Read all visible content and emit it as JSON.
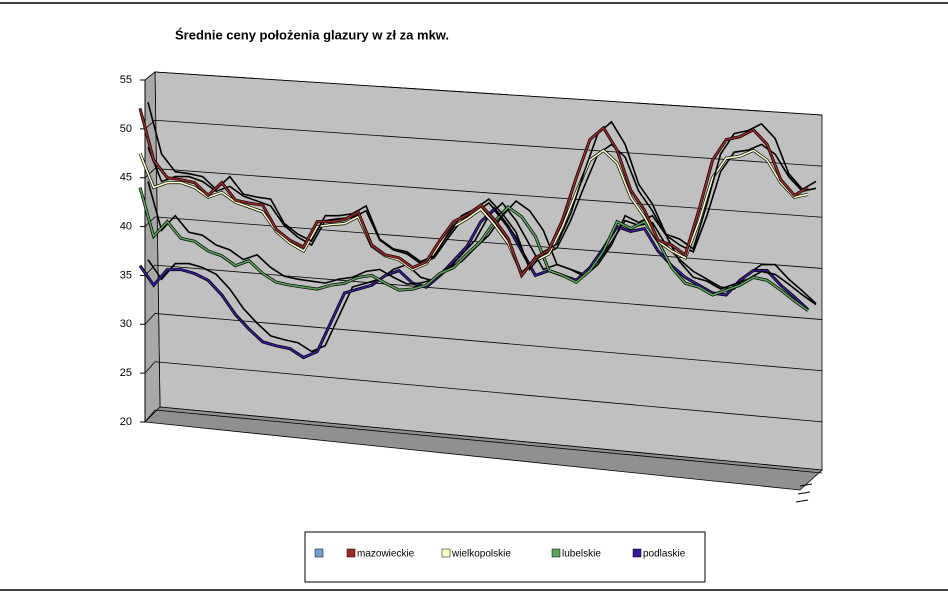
{
  "chart_data": {
    "type": "line3d",
    "title": "Średnie ceny położenia glazury w zł za mkw.",
    "ylim": [
      20,
      55
    ],
    "yticks": [
      20,
      25,
      30,
      35,
      40,
      45,
      50,
      55
    ],
    "grid": true,
    "series": [
      {
        "name": "mazowieckie",
        "color": "#a02828",
        "values": [
          52.1,
          46.8,
          45.0,
          44.8,
          44.5,
          43.2,
          44.5,
          42.7,
          42.4,
          42.2,
          39.7,
          38.6,
          37.9,
          40.5,
          40.5,
          40.7,
          41.5,
          38.1,
          37.1,
          36.8,
          35.8,
          36.4,
          38.6,
          40.5,
          41.2,
          42.2,
          40.7,
          38.8,
          35.0,
          36.8,
          37.6,
          40.7,
          45.0,
          48.9,
          50.1,
          47.8,
          43.7,
          41.7,
          38.6,
          38.1,
          37.1,
          41.7,
          46.8,
          48.9,
          49.2,
          49.9,
          48.4,
          44.8,
          43.2,
          44.0
        ]
      },
      {
        "name": "wielkopolskie",
        "color": "#ffffc8",
        "values": [
          47.5,
          44.0,
          44.5,
          44.5,
          44.0,
          43.0,
          43.5,
          42.5,
          42.0,
          41.5,
          39.5,
          38.3,
          37.5,
          40.0,
          40.2,
          40.3,
          41.0,
          38.0,
          37.0,
          36.6,
          35.6,
          36.2,
          38.2,
          40.0,
          40.8,
          41.8,
          40.2,
          38.3,
          35.2,
          36.5,
          37.2,
          40.0,
          43.5,
          46.8,
          47.8,
          46.5,
          43.0,
          41.0,
          38.5,
          37.5,
          36.8,
          40.5,
          45.0,
          47.0,
          47.2,
          47.8,
          46.8,
          44.5,
          43.0,
          43.3
        ]
      },
      {
        "name": "lubelskie",
        "color": "#5aa55a",
        "values": [
          44.0,
          39.0,
          40.5,
          38.8,
          38.5,
          37.5,
          37.0,
          36.0,
          36.5,
          35.2,
          34.3,
          34.0,
          33.8,
          33.6,
          34.0,
          34.2,
          34.8,
          35.0,
          34.2,
          33.5,
          33.6,
          34.0,
          35.2,
          35.8,
          37.2,
          38.5,
          40.5,
          42.0,
          41.0,
          39.0,
          35.5,
          35.0,
          34.3,
          35.5,
          37.5,
          40.5,
          39.8,
          40.5,
          38.5,
          35.8,
          34.2,
          33.8,
          33.0,
          33.5,
          34.0,
          34.8,
          34.5,
          33.5,
          32.4,
          31.4
        ]
      },
      {
        "name": "podlaskie",
        "color": "#3a1a99",
        "values": [
          36.0,
          34.0,
          35.6,
          35.6,
          35.2,
          34.5,
          33.0,
          31.0,
          29.5,
          28.2,
          27.8,
          27.5,
          26.6,
          27.2,
          30.2,
          33.2,
          33.6,
          34.0,
          35.0,
          35.5,
          34.2,
          33.8,
          35.0,
          36.5,
          38.0,
          40.5,
          41.8,
          40.0,
          37.5,
          35.0,
          35.5,
          35.0,
          34.5,
          35.8,
          37.8,
          40.0,
          39.5,
          39.8,
          37.5,
          36.0,
          34.8,
          34.0,
          33.2,
          33.0,
          34.5,
          35.5,
          35.5,
          34.0,
          32.8,
          31.5
        ]
      }
    ]
  }
}
